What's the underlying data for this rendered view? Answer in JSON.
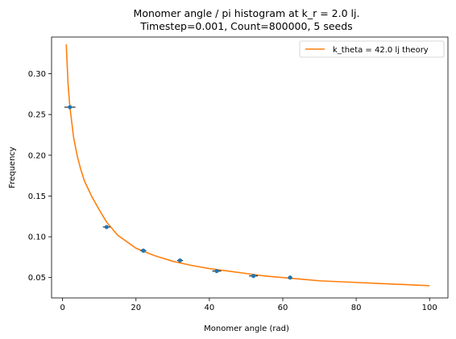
{
  "chart_data": {
    "type": "scatter",
    "title": "Monomer angle / pi histogram at k_r = 2.0 lj.",
    "subtitle": "Timestep=0.001, Count=800000, 5 seeds",
    "xlabel": "Monomer angle (rad)",
    "ylabel": "Frequency",
    "xlim": [
      -3,
      105
    ],
    "ylim": [
      0.025,
      0.345
    ],
    "xticks": [
      0,
      20,
      40,
      60,
      80,
      100
    ],
    "yticks": [
      0.05,
      0.1,
      0.15,
      0.2,
      0.25,
      0.3
    ],
    "xtick_labels": [
      "0",
      "20",
      "40",
      "60",
      "80",
      "100"
    ],
    "ytick_labels": [
      "0.05",
      "0.10",
      "0.15",
      "0.20",
      "0.25",
      "0.30"
    ],
    "legend_position": "top-right",
    "grid": false,
    "series": [
      {
        "name": "",
        "kind": "points-with-xerror",
        "color": "#1f77b4",
        "points": [
          {
            "x": 2,
            "y": 0.259,
            "xerr": 1.5
          },
          {
            "x": 12,
            "y": 0.112,
            "xerr": 1.0
          },
          {
            "x": 22,
            "y": 0.083,
            "xerr": 0.8
          },
          {
            "x": 32,
            "y": 0.071,
            "xerr": 0.8
          },
          {
            "x": 42,
            "y": 0.058,
            "xerr": 1.2
          },
          {
            "x": 52,
            "y": 0.052,
            "xerr": 1.2
          },
          {
            "x": 62,
            "y": 0.05,
            "xerr": 0.6
          }
        ]
      },
      {
        "name": "k_theta = 42.0 lj theory",
        "kind": "line",
        "color": "#ff7f0e",
        "x": [
          1,
          1.5,
          2,
          3,
          4,
          5,
          6,
          8,
          10,
          12,
          15,
          20,
          25,
          30,
          35,
          40,
          45,
          50,
          55,
          60,
          65,
          70,
          75,
          80,
          85,
          90,
          95,
          100
        ],
        "y": [
          0.336,
          0.287,
          0.259,
          0.222,
          0.199,
          0.182,
          0.168,
          0.149,
          0.133,
          0.118,
          0.102,
          0.086,
          0.077,
          0.07,
          0.065,
          0.061,
          0.058,
          0.055,
          0.052,
          0.05,
          0.048,
          0.046,
          0.045,
          0.044,
          0.043,
          0.042,
          0.041,
          0.04
        ]
      }
    ]
  }
}
